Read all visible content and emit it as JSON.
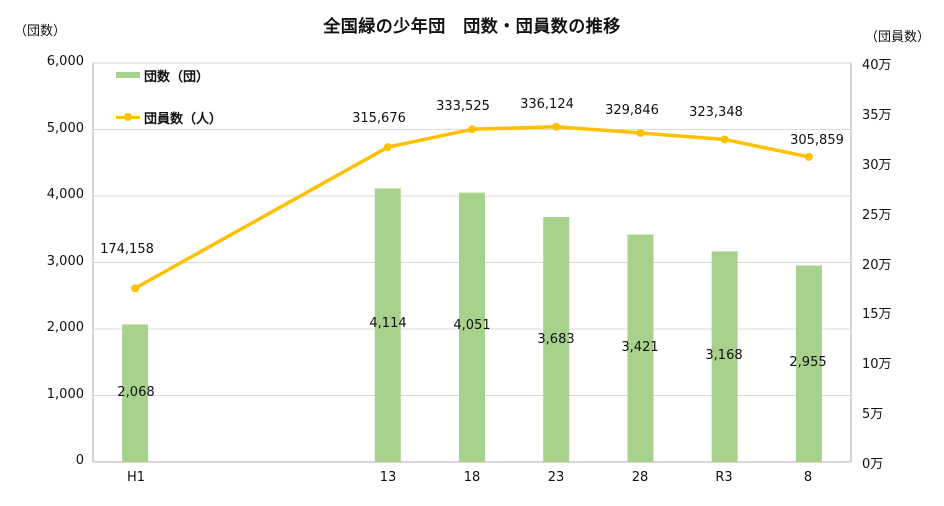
{
  "title": "全国緑の少年団　団数・団員数の推移",
  "left_unit": "（団数）",
  "right_unit": "（団員数）",
  "legend": {
    "bars_label": "団数（団）",
    "line_label": "団員数（人）"
  },
  "colors": {
    "bar": "#a9d18e",
    "line": "#ffc000",
    "grid": "#d9d9d9",
    "axis": "#bfbfbf"
  },
  "left_ticks": [
    "0",
    "1,000",
    "2,000",
    "3,000",
    "4,000",
    "5,000",
    "6,000"
  ],
  "right_ticks": [
    "0万",
    "5万",
    "10万",
    "15万",
    "20万",
    "25万",
    "30万",
    "35万",
    "40万"
  ],
  "x_labels": [
    "H1",
    "13",
    "18",
    "23",
    "28",
    "R3",
    "8"
  ],
  "bar_labels": [
    "2,068",
    "4,114",
    "4,051",
    "3,683",
    "3,421",
    "3,168",
    "2,955"
  ],
  "line_labels": [
    "174,158",
    "315,676",
    "333,525",
    "336,124",
    "329,846",
    "323,348",
    "305,859"
  ],
  "chart_data": {
    "type": "bar",
    "title": "全国緑の少年団　団数・団員数の推移",
    "xlabel": "",
    "categories": [
      "H1",
      "",
      "",
      "13",
      "18",
      "23",
      "28",
      "R3",
      "8"
    ],
    "series": [
      {
        "name": "団数（団）",
        "type": "bar",
        "axis": "left",
        "values": [
          2068,
          null,
          null,
          4114,
          4051,
          3683,
          3421,
          3168,
          2955
        ]
      },
      {
        "name": "団員数（人）",
        "type": "line",
        "axis": "right",
        "values": [
          174158,
          null,
          null,
          315676,
          333525,
          336124,
          329846,
          323348,
          305859
        ]
      }
    ],
    "ylabel": "（団数）",
    "ylim": [
      0,
      6000
    ],
    "y2label": "（団員数）",
    "y2lim": [
      0,
      400000
    ],
    "y2_tick_labels": [
      "0万",
      "5万",
      "10万",
      "15万",
      "20万",
      "25万",
      "30万",
      "35万",
      "40万"
    ],
    "grid": true,
    "legend_position": "top-left inside"
  }
}
